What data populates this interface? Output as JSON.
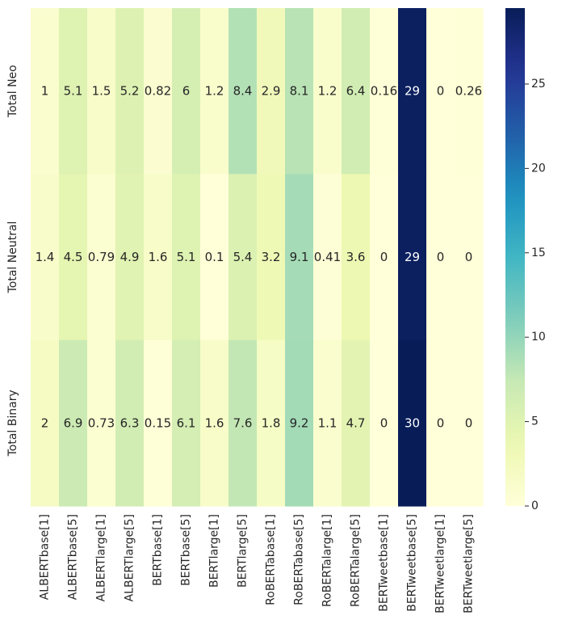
{
  "chart_data": {
    "type": "heatmap",
    "title": "",
    "xlabel": "",
    "ylabel": "",
    "x_categories": [
      "ALBERTbase[1]",
      "ALBERTbase[5]",
      "ALBERTlarge[1]",
      "ALBERTlarge[5]",
      "BERTbase[1]",
      "BERTbase[5]",
      "BERTlarge[1]",
      "BERTlarge[5]",
      "RoBERTabase[1]",
      "RoBERTabase[5]",
      "RoBERTalarge[1]",
      "RoBERTalarge[5]",
      "BERTweetbase[1]",
      "BERTweetbase[5]",
      "BERTweetlarge[1]",
      "BERTweetlarge[5]"
    ],
    "y_categories": [
      "Total Neo",
      "Total Neutral",
      "Total Binary"
    ],
    "values": [
      [
        1.0,
        5.1,
        1.5,
        5.2,
        0.82,
        6.0,
        1.2,
        8.4,
        2.9,
        8.1,
        1.2,
        6.4,
        0.16,
        29.0,
        0.0,
        0.26
      ],
      [
        1.4,
        4.5,
        0.79,
        4.9,
        1.6,
        5.1,
        0.1,
        5.4,
        3.2,
        9.1,
        0.41,
        3.6,
        0.0,
        29.0,
        0.0,
        0.0
      ],
      [
        2.0,
        6.9,
        0.73,
        6.3,
        0.15,
        6.1,
        1.6,
        7.6,
        1.8,
        9.2,
        1.1,
        4.7,
        0.0,
        30.0,
        0.0,
        0.0
      ]
    ],
    "annotations": [
      [
        "1",
        "5.1",
        "1.5",
        "5.2",
        "0.82",
        "6",
        "1.2",
        "8.4",
        "2.9",
        "8.1",
        "1.2",
        "6.4",
        "0.16",
        "29",
        "0",
        "0.26"
      ],
      [
        "1.4",
        "4.5",
        "0.79",
        "4.9",
        "1.6",
        "5.1",
        "0.1",
        "5.4",
        "3.2",
        "9.1",
        "0.41",
        "3.6",
        "0",
        "29",
        "0",
        "0"
      ],
      [
        "2",
        "6.9",
        "0.73",
        "6.3",
        "0.15",
        "6.1",
        "1.6",
        "7.6",
        "1.8",
        "9.2",
        "1.1",
        "4.7",
        "0",
        "30",
        "0",
        "0"
      ]
    ],
    "colormap": "YlGnBu",
    "vmin": 0,
    "vmax": 29.5,
    "colorbar_ticks": [
      0,
      5,
      10,
      15,
      20,
      25
    ],
    "colorbar_tick_labels": [
      "0",
      "5",
      "10",
      "15",
      "20",
      "25"
    ],
    "grid": false
  }
}
